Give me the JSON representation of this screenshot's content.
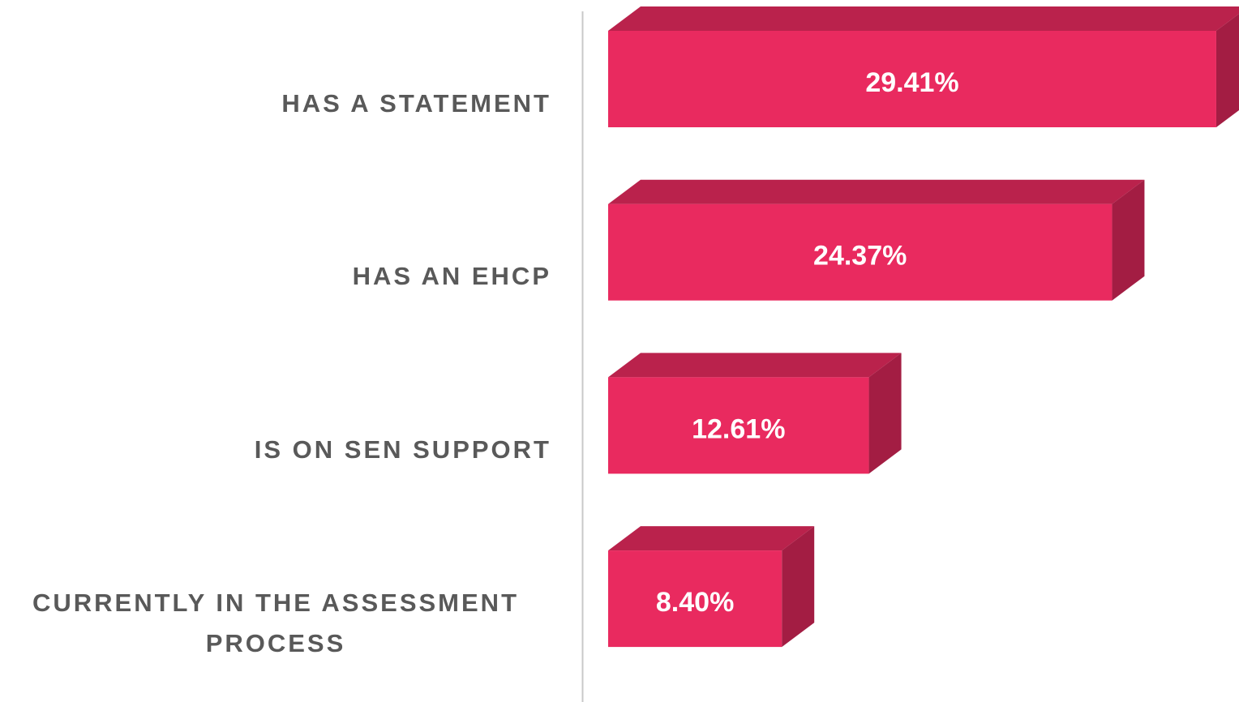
{
  "chart_data": {
    "type": "bar3d",
    "categories": [
      "HAS A STATEMENT",
      "HAS AN EHCP",
      "IS ON SEN SUPPORT",
      "CURRENTLY IN THE ASSESSMENT PROCESS"
    ],
    "values": [
      29.41,
      24.37,
      12.61,
      8.4
    ],
    "value_labels": [
      "29.41%",
      "24.37%",
      "12.61%",
      "8.40%"
    ],
    "color": "#e92a5f"
  }
}
